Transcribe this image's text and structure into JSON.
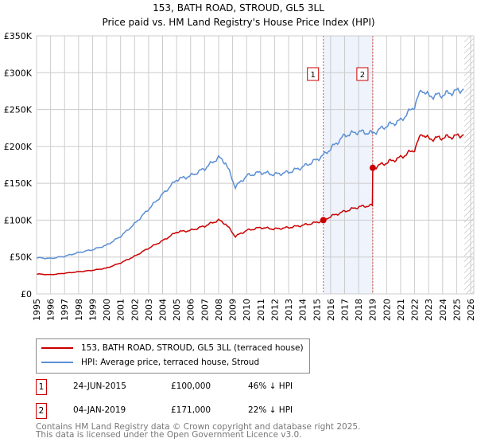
{
  "chart_data": {
    "type": "line",
    "title": "153, BATH ROAD, STROUD, GL5 3LL",
    "subtitle": "Price paid vs. HM Land Registry's House Price Index (HPI)",
    "xlim": [
      1995,
      2026
    ],
    "ylim": [
      0,
      350000
    ],
    "y_ticks": [
      {
        "v": 0,
        "label": "£0"
      },
      {
        "v": 50000,
        "label": "£50K"
      },
      {
        "v": 100000,
        "label": "£100K"
      },
      {
        "v": 150000,
        "label": "£150K"
      },
      {
        "v": 200000,
        "label": "£200K"
      },
      {
        "v": 250000,
        "label": "£250K"
      },
      {
        "v": 300000,
        "label": "£300K"
      },
      {
        "v": 350000,
        "label": "£350K"
      }
    ],
    "x_ticks": [
      "1995",
      "1996",
      "1997",
      "1998",
      "1999",
      "2000",
      "2001",
      "2002",
      "2003",
      "2004",
      "2005",
      "2006",
      "2007",
      "2008",
      "2009",
      "2010",
      "2011",
      "2012",
      "2013",
      "2014",
      "2015",
      "2016",
      "2017",
      "2018",
      "2019",
      "2020",
      "2021",
      "2022",
      "2023",
      "2024",
      "2025",
      "2026"
    ],
    "grid": true,
    "series": [
      {
        "name": "153, BATH ROAD, STROUD, GL5 3LL (terraced house)",
        "color": "#cc0000",
        "x": [
          1995,
          1996,
          1997,
          1998,
          1999,
          2000,
          2001,
          2002,
          2003,
          2004,
          2005,
          2006,
          2007,
          2008,
          2008.5,
          2009.2,
          2010,
          2011,
          2012,
          2013,
          2014,
          2015,
          2015.48,
          2016,
          2017,
          2018,
          2018.98,
          2019.01,
          2020,
          2021,
          2022,
          2022.5,
          2023,
          2024,
          2025,
          2025.5
        ],
        "y": [
          27000,
          26000,
          28000,
          30000,
          32000,
          35000,
          42000,
          51000,
          62000,
          72000,
          84000,
          86000,
          92000,
          100000,
          95000,
          78000,
          86000,
          90000,
          88000,
          90000,
          93000,
          97000,
          100000,
          105000,
          112000,
          118000,
          120000,
          171000,
          178000,
          185000,
          196000,
          218000,
          210000,
          212000,
          214000,
          216000
        ]
      },
      {
        "name": "HPI: Average price, terraced house, Stroud",
        "color": "#5b8fd4",
        "x": [
          1995,
          1996,
          1997,
          1998,
          1999,
          2000,
          2001,
          2002,
          2003,
          2004,
          2005,
          2006,
          2007,
          2008,
          2008.5,
          2009.2,
          2010,
          2011,
          2012,
          2013,
          2014,
          2015,
          2015.48,
          2016,
          2017,
          2018,
          2018.98,
          2019.01,
          2020,
          2021,
          2022,
          2022.5,
          2023,
          2024,
          2025,
          2025.5
        ],
        "y": [
          49000,
          48000,
          51000,
          56000,
          60000,
          66000,
          78000,
          95000,
          115000,
          135000,
          155000,
          160000,
          170000,
          185000,
          178000,
          145000,
          160000,
          165000,
          162000,
          165000,
          172000,
          182000,
          188000,
          197000,
          215000,
          220000,
          218000,
          218000,
          228000,
          235000,
          255000,
          278000,
          268000,
          270000,
          275000,
          278000
        ]
      }
    ],
    "sales": [
      {
        "id": "1",
        "x": 2015.48,
        "price": 100000
      },
      {
        "id": "2",
        "x": 2019.01,
        "price": 171000
      }
    ],
    "legend": "below"
  },
  "table": [
    {
      "id": "1",
      "date": "24-JUN-2015",
      "price": "£100,000",
      "hpi": "46% ↓ HPI"
    },
    {
      "id": "2",
      "date": "04-JAN-2019",
      "price": "£171,000",
      "hpi": "22% ↓ HPI"
    }
  ],
  "footer": [
    "Contains HM Land Registry data © Crown copyright and database right 2025.",
    "This data is licensed under the Open Government Licence v3.0."
  ]
}
